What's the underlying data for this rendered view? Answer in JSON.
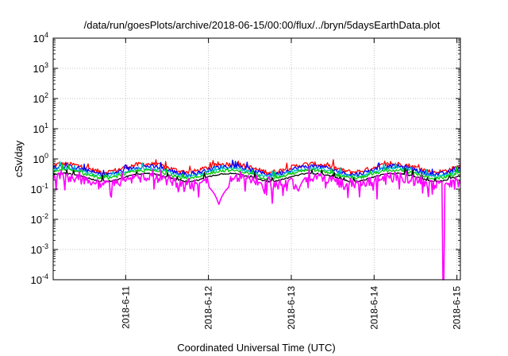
{
  "chart_data": {
    "type": "line",
    "title": "/data/run/goesPlots/archive/2018-06-15/00:00/flux/../bryn/5daysEarthData.plot",
    "xlabel": "Coordinated Universal Time (UTC)",
    "ylabel": "cSv/day",
    "y_scale": "log",
    "ylim": [
      0.0001,
      10000
    ],
    "y_ticks": [
      {
        "value": 0.0001,
        "base": "10",
        "exp": "-4"
      },
      {
        "value": 0.001,
        "base": "10",
        "exp": "-3"
      },
      {
        "value": 0.01,
        "base": "10",
        "exp": "-2"
      },
      {
        "value": 0.1,
        "base": "10",
        "exp": "-1"
      },
      {
        "value": 1,
        "base": "10",
        "exp": "0"
      },
      {
        "value": 10,
        "base": "10",
        "exp": "1"
      },
      {
        "value": 100,
        "base": "10",
        "exp": "2"
      },
      {
        "value": 1000,
        "base": "10",
        "exp": "3"
      },
      {
        "value": 10000,
        "base": "10",
        "exp": "4"
      }
    ],
    "xlim": [
      "2018-06-10 03:00",
      "2018-06-15 01:00"
    ],
    "x_ticks": [
      {
        "value": "2018-06-11 00:00",
        "label": "2018-6-11"
      },
      {
        "value": "2018-06-12 00:00",
        "label": "2018-6-12"
      },
      {
        "value": "2018-06-13 00:00",
        "label": "2018-6-13"
      },
      {
        "value": "2018-06-14 00:00",
        "label": "2018-6-14"
      },
      {
        "value": "2018-06-15 00:00",
        "label": "2018-6-15"
      }
    ],
    "grid": true,
    "legend": "none",
    "series": [
      {
        "color": "#ff0000",
        "base": 0.62,
        "spread": 0.18
      },
      {
        "color": "#0000ff",
        "base": 0.52,
        "spread": 0.16
      },
      {
        "color": "#00c0c0",
        "base": 0.44,
        "spread": 0.12
      },
      {
        "color": "#00cc00",
        "base": 0.38,
        "spread": 0.1
      },
      {
        "color": "#000000",
        "base": 0.3,
        "spread": 0.05
      },
      {
        "color": "#ff00ff",
        "base": 0.24,
        "spread": 0.35
      }
    ],
    "dips": [
      {
        "time": "2018-06-12 03:00",
        "value": 0.03
      },
      {
        "time": "2018-06-13 02:00",
        "value": 0.08
      },
      {
        "time": "2018-06-14 20:00",
        "value": 0.0001
      }
    ]
  }
}
